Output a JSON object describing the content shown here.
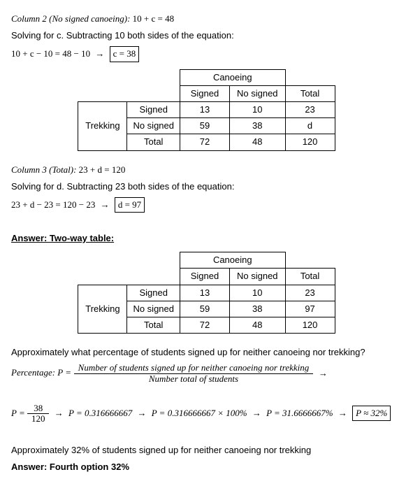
{
  "line1": {
    "label": "Column 2 (No signed canoeing): ",
    "eq": "10 + c = 48"
  },
  "solve_c": "Solving for c. Subtracting 10 both sides of the equation:",
  "eq_c": {
    "lhs": "10 + c − 10 = 48 − 10",
    "arrow": "→",
    "boxed": "c = 38"
  },
  "table1": {
    "group_col": "Canoeing",
    "cols": [
      "Signed",
      "No signed",
      "Total"
    ],
    "group_row": "Trekking",
    "rows": [
      {
        "label": "Signed",
        "vals": [
          "13",
          "10",
          "23"
        ]
      },
      {
        "label": "No signed",
        "vals": [
          "59",
          "38",
          "d"
        ]
      },
      {
        "label": "Total",
        "vals": [
          "72",
          "48",
          "120"
        ]
      }
    ]
  },
  "line2": {
    "label": "Column 3 (Total): ",
    "eq": "23 + d = 120"
  },
  "solve_d": "Solving for d. Subtracting 23 both sides of the equation:",
  "eq_d": {
    "lhs": "23 + d − 23 = 120 − 23",
    "arrow": "→",
    "boxed": "d = 97"
  },
  "answer_table_heading": "Answer: Two-way table:",
  "table2": {
    "group_col": "Canoeing",
    "cols": [
      "Signed",
      "No signed",
      "Total"
    ],
    "group_row": "Trekking",
    "rows": [
      {
        "label": "Signed",
        "vals": [
          "13",
          "10",
          "23"
        ]
      },
      {
        "label": "No signed",
        "vals": [
          "59",
          "38",
          "97"
        ]
      },
      {
        "label": "Total",
        "vals": [
          "72",
          "48",
          "120"
        ]
      }
    ]
  },
  "question": "Approximately what percentage of students signed up for neither canoeing nor trekking?",
  "pct_formula": {
    "lhs": "Percentage: P =",
    "num": "Number of students signed up for neither canoeing nor trekking",
    "den": "Number total of students",
    "arrow": "→"
  },
  "calc": {
    "lhs": "P =",
    "frac_num": "38",
    "frac_den": "120",
    "step1": "P = 0.316666667",
    "step2": "P = 0.316666667 × 100%",
    "step3": "P = 31.6666667%",
    "boxed": "P ≈ 32%",
    "arrow": "→"
  },
  "conclusion": "Approximately 32% of students signed up for neither canoeing nor trekking",
  "final_answer": "Answer: Fourth option 32%"
}
